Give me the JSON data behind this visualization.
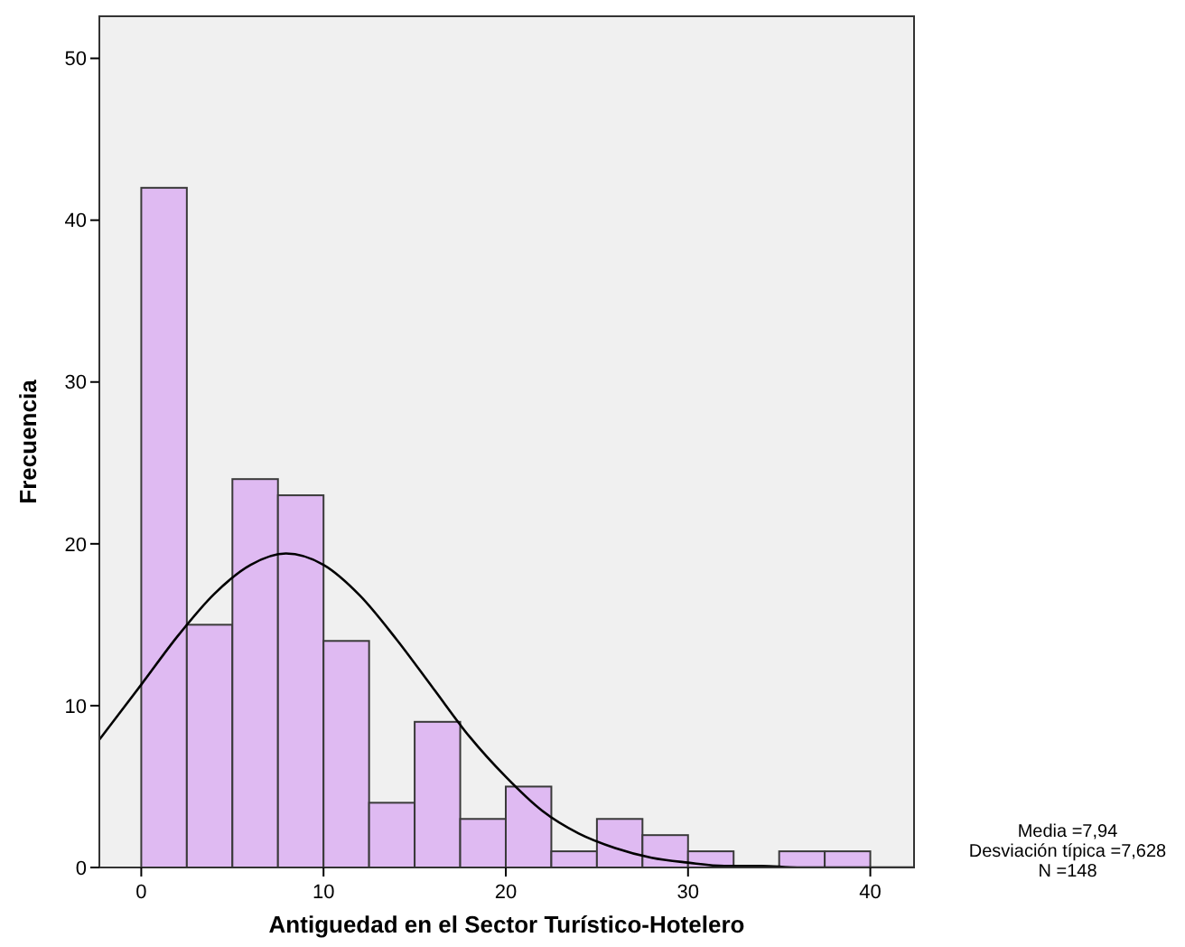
{
  "chart_data": {
    "type": "histogram",
    "xlabel": "Antiguedad en el Sector Turístico-Hotelero",
    "ylabel": "Frecuencia",
    "bins": [
      0,
      2.5,
      5,
      7.5,
      10,
      12.5,
      15,
      17.5,
      20,
      22.5,
      25,
      27.5,
      30,
      32.5,
      35,
      37.5,
      40
    ],
    "series": [
      {
        "color": "#dfbaf2",
        "values": [
          42,
          15,
          24,
          23,
          14,
          4,
          9,
          3,
          5,
          1,
          3,
          2,
          1,
          0,
          1,
          1
        ]
      },
      {
        "type": "line",
        "color": "#000000",
        "x": [
          -2.3,
          0,
          2,
          4,
          6,
          7.94,
          10,
          12,
          14,
          16,
          18,
          20,
          22,
          24,
          26,
          28,
          30,
          32,
          34,
          36,
          38,
          40,
          42.4
        ],
        "values": [
          7.9,
          11.3,
          14.3,
          16.9,
          18.7,
          19.4,
          18.7,
          16.8,
          14.1,
          11.1,
          8.1,
          5.6,
          3.5,
          2.1,
          1.2,
          0.6,
          0.3,
          0.1,
          0.1,
          0,
          0,
          0,
          0
        ]
      }
    ],
    "xlim": [
      -2.3,
      42.4
    ],
    "xticks": [
      0,
      10,
      20,
      30,
      40
    ],
    "ylim": [
      0,
      52.6
    ],
    "yticks": [
      0,
      10,
      20,
      30,
      40,
      50
    ],
    "grid": false,
    "annotations": [
      "Media =7,94",
      "Desviación típica =7,628",
      "N =148"
    ]
  }
}
